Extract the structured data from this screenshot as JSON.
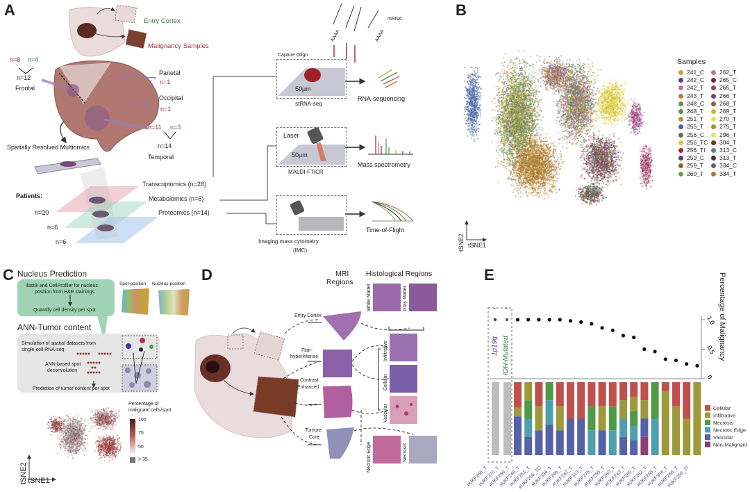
{
  "panels": {
    "a": "A",
    "b": "B",
    "c": "C",
    "d": "D",
    "e": "E"
  },
  "panel_a": {
    "entry_cortex": "Entry Cortex",
    "malignancy_samples": "Malignancy Samples",
    "frontal": {
      "n_red": "n=8",
      "n_green": "n=4",
      "n_total": "n=12",
      "label": "Frontal"
    },
    "parietal": {
      "label": "Parietal",
      "n": "n=1"
    },
    "occipital": {
      "label": "Occipital",
      "n": "n=1"
    },
    "temporal": {
      "n_red": "n=11",
      "n_green": "n=3",
      "n_total": "n=14",
      "label": "Temporal"
    },
    "multiomics": "Spatially Resolved Multiomics",
    "patients_label": "Patients:",
    "patients": [
      "n=20",
      "n=6",
      "n=6"
    ],
    "omics": [
      "Transcriptomics (n=28)",
      "Metabolomics (n=6)",
      "Proteomics (n=14)"
    ],
    "mrna": "mRNA",
    "aaaa": "AAAA",
    "capture_oligo": "Capture Oligo",
    "size_label": "50µm",
    "strna": "stRNA-seq",
    "rna_seq": "RNA-sequencing",
    "laser": "Laser",
    "maldi": "MALDI-FTICR",
    "mass_spec": "Mass spectrometry",
    "imc": "Imaging mass cytometry",
    "imc_abbr": "(IMC)",
    "tof": "Time-of-Flight"
  },
  "panel_b": {
    "legend_title": "Samples",
    "samples": [
      {
        "name": "241_C",
        "color": "#c9a23a"
      },
      {
        "name": "242_C",
        "color": "#5b3f8c"
      },
      {
        "name": "242_T",
        "color": "#c0729a"
      },
      {
        "name": "243_T",
        "color": "#c0743a"
      },
      {
        "name": "248_C",
        "color": "#5a9060"
      },
      {
        "name": "248_T",
        "color": "#4f9a48"
      },
      {
        "name": "251_T",
        "color": "#b09a40"
      },
      {
        "name": "255_T",
        "color": "#4f5fa8"
      },
      {
        "name": "256_C",
        "color": "#5e6e5e"
      },
      {
        "name": "256_TC",
        "color": "#e0c040"
      },
      {
        "name": "256_TI",
        "color": "#a02828"
      },
      {
        "name": "259_C",
        "color": "#4a4a7a"
      },
      {
        "name": "259_T",
        "color": "#8a6a30"
      },
      {
        "name": "260_T",
        "color": "#6a9a50"
      },
      {
        "name": "262_T",
        "color": "#c87090"
      },
      {
        "name": "265_C",
        "color": "#7a2040"
      },
      {
        "name": "265_T",
        "color": "#904a60"
      },
      {
        "name": "266_T",
        "color": "#7a4080"
      },
      {
        "name": "268_T",
        "color": "#905858"
      },
      {
        "name": "269_T",
        "color": "#c8b830"
      },
      {
        "name": "270_T",
        "color": "#ece050"
      },
      {
        "name": "275_T",
        "color": "#b88830"
      },
      {
        "name": "296_T",
        "color": "#e8e070"
      },
      {
        "name": "304_T",
        "color": "#6a3a20"
      },
      {
        "name": "313_C",
        "color": "#5a80a8"
      },
      {
        "name": "313_T",
        "color": "#4a3040"
      },
      {
        "name": "334_C",
        "color": "#6a6080"
      },
      {
        "name": "334_T",
        "color": "#b8704a"
      }
    ],
    "xlabel": "tSNE1",
    "ylabel": "tSNE2"
  },
  "panel_c": {
    "title1": "Nucleus Prediction",
    "green_text1": "Ilastik and CellProfiler for nucleus",
    "green_text2": "position from H&E stainings",
    "green_text3": "Quantify cell density per spot",
    "spot_position": "Spot-position",
    "nucleus_position": "Nucleus-position",
    "title2": "ANN-Tumor content",
    "sim1": "Simulation of spatial datasets from",
    "sim2": "single-cell RNA-seq",
    "ann1": "ANN-based spot",
    "ann2": "deconvolution",
    "prediction": "Prediction of  tumor content per spot",
    "legend_title1": "Percentage of",
    "legend_title2": "malignant cells/spot",
    "legend_ticks": [
      "100",
      "75",
      "50",
      "> 35"
    ],
    "xlabel": "tSNE1",
    "ylabel": "tSNE2"
  },
  "panel_d": {
    "mri1": "MRI",
    "mri2": "Regions",
    "histo": "Histological Regions",
    "mri_regions": [
      "Entry Cortex",
      "Flair-",
      "hyperintense",
      "Contrast",
      "Enhanced",
      "Tumore",
      "Core"
    ],
    "histo_regions": [
      "White Matter",
      "Gray Matter",
      "Infiltrative",
      "Cellular",
      "Vascular",
      "Necrotic Edge",
      "Necrosis"
    ]
  },
  "chart_data": {
    "type": "bar",
    "title": "",
    "ylabel": "Percentage of Malignancy",
    "ylim": [
      0,
      1.0
    ],
    "yticks": [
      "0",
      "0.5",
      "1.0"
    ],
    "annotations": [
      "1p19q",
      "IDH-Mutated"
    ],
    "excluded_marker": "~",
    "categories": [
      "#UKF268_T",
      "#UKF270_T",
      "#UKF259_T",
      "#UKF248_T",
      "#UKF251_T",
      "#UKF256_TC",
      "#UKF334_T",
      "#UKF296_T",
      "#UKF242_T",
      "#UKF313_T",
      "#UKF275_T",
      "#UKF255_T",
      "#UKF260_T",
      "#UKF243_T",
      "#UKF269_T",
      "#UKF262_T",
      "#UKF265_T",
      "#UKF304_T",
      "#UKF266_T",
      "#UKF256_TI"
    ],
    "malignancy": [
      null,
      null,
      1.0,
      1.0,
      1.0,
      1.0,
      1.0,
      0.98,
      0.96,
      0.93,
      0.86,
      0.82,
      0.73,
      0.7,
      0.5,
      0.46,
      0.33,
      0.31,
      0.25,
      0.22
    ],
    "series_names": [
      "Cellular",
      "Infiltrative",
      "Necrosis",
      "Necrotic Edge",
      "Vascular",
      "Non-Malignant"
    ],
    "series_colors": [
      "#c0504d",
      "#9c9a3a",
      "#4f9a48",
      "#4ea0ac",
      "#5562a8",
      "#8e3f72"
    ],
    "excluded_color": "#bdbdbd",
    "composition": [
      null,
      null,
      [
        0.35,
        0.12,
        0,
        0,
        0.53,
        0
      ],
      [
        0,
        0.25,
        0.25,
        0.25,
        0.25,
        0
      ],
      [
        0.33,
        0.33,
        0,
        0,
        0.34,
        0
      ],
      [
        0,
        0,
        0.25,
        0.33,
        0.42,
        0
      ],
      [
        0.33,
        0.33,
        0,
        0,
        0.34,
        0
      ],
      [
        0.5,
        0,
        0,
        0,
        0.5,
        0
      ],
      [
        0.5,
        0,
        0,
        0,
        0.5,
        0
      ],
      [
        0.33,
        0,
        0.33,
        0.34,
        0,
        0
      ],
      [
        0.33,
        0.33,
        0,
        0,
        0.34,
        0
      ],
      [
        0.33,
        0,
        0.33,
        0.34,
        0,
        0
      ],
      [
        0.25,
        0.25,
        0,
        0.25,
        0.25,
        0
      ],
      [
        0.2,
        0.2,
        0.2,
        0.2,
        0.2,
        0
      ],
      [
        0.25,
        0.25,
        0,
        0,
        0.25,
        0.25
      ],
      [
        0,
        0,
        0.5,
        0.5,
        0,
        0
      ],
      [
        0.12,
        0.88,
        0,
        0,
        0,
        0
      ],
      [
        0.33,
        0.67,
        0,
        0,
        0,
        0
      ],
      [
        0.5,
        0.5,
        0,
        0,
        0,
        0
      ],
      [
        0,
        1.0,
        0,
        0,
        0,
        0
      ]
    ]
  }
}
